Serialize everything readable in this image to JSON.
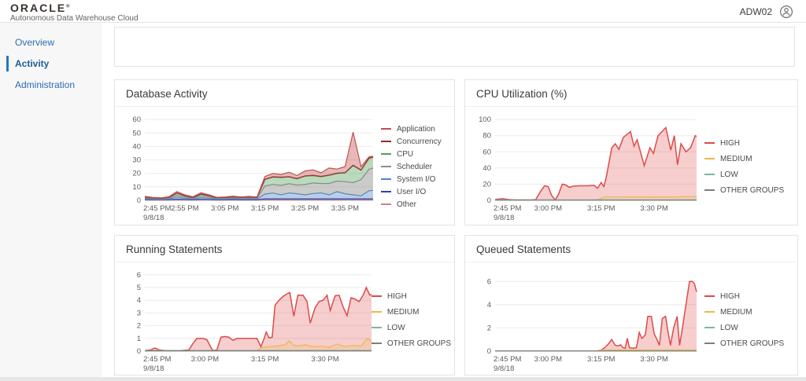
{
  "header": {
    "logo": "ORACLE",
    "logo_mark": "®",
    "subtitle": "Autonomous Data Warehouse Cloud",
    "user_label": "ADW02"
  },
  "sidebar": {
    "items": [
      {
        "label": "Overview"
      },
      {
        "label": "Activity"
      },
      {
        "label": "Administration"
      }
    ],
    "active": "Activity"
  },
  "chart_data": [
    {
      "id": "db-activity",
      "type": "area",
      "stacked": true,
      "title": "Database Activity",
      "date": "9/8/18",
      "xmin": 0,
      "xmax": 57,
      "ymax": 63,
      "yticks": [
        0,
        10,
        20,
        30,
        40,
        50,
        60
      ],
      "xticks": [
        {
          "t": 0,
          "label": "2:45 PM"
        },
        {
          "t": 10,
          "label": "2:55 PM"
        },
        {
          "t": 20,
          "label": "3:05 PM"
        },
        {
          "t": 30,
          "label": "3:15 PM"
        },
        {
          "t": 40,
          "label": "3:25 PM"
        },
        {
          "t": 50,
          "label": "3:35 PM"
        }
      ],
      "x": [
        0,
        2,
        4,
        6,
        8,
        10,
        12,
        14,
        16,
        18,
        20,
        22,
        24,
        26,
        28,
        30,
        32,
        34,
        36,
        38,
        40,
        42,
        44,
        46,
        48,
        50,
        52,
        54,
        56,
        57
      ],
      "series": [
        {
          "name": "Other",
          "color": "#cf8099",
          "fo": 0.45,
          "y": [
            0.4,
            0.3,
            0.3,
            0.3,
            0.5,
            0.4,
            0.3,
            0.5,
            0.4,
            0.3,
            0.3,
            0.4,
            0.3,
            0.3,
            0.3,
            0.5,
            0.5,
            0.5,
            0.5,
            0.5,
            0.5,
            0.5,
            0.5,
            0.5,
            0.5,
            0.5,
            0.5,
            0.5,
            0.5,
            0.5
          ]
        },
        {
          "name": "User I/O",
          "color": "#33429e",
          "fo": 0.45,
          "y": [
            0.3,
            0.2,
            0.2,
            0.2,
            0.4,
            0.3,
            0.2,
            0.4,
            0.3,
            0.2,
            0.2,
            0.3,
            0.2,
            0.2,
            0.2,
            0.6,
            0.6,
            0.6,
            0.6,
            0.6,
            0.6,
            0.6,
            0.6,
            0.6,
            0.6,
            0.6,
            0.6,
            0.6,
            0.6,
            0.6
          ]
        },
        {
          "name": "System I/O",
          "color": "#4f86c6",
          "fo": 0.4,
          "y": [
            0.6,
            0.4,
            0.3,
            0.5,
            1.5,
            0.8,
            0.5,
            1.2,
            0.9,
            0.4,
            0.5,
            0.6,
            0.5,
            0.6,
            0.5,
            3.5,
            4.3,
            3.0,
            4.4,
            3.8,
            3.0,
            4.0,
            4.4,
            3.0,
            5.4,
            3.8,
            3.0,
            2.2,
            6.0,
            6.3
          ]
        },
        {
          "name": "Scheduler",
          "color": "#8c8c8c",
          "fo": 0.45,
          "y": [
            0.6,
            0.4,
            0.4,
            0.6,
            1.5,
            1.0,
            0.6,
            1.3,
            1.0,
            0.5,
            0.6,
            0.7,
            0.6,
            0.7,
            0.6,
            6.0,
            6.4,
            7.0,
            6.8,
            6.4,
            7.6,
            7.8,
            7.0,
            8.4,
            7.8,
            9.0,
            9.0,
            12.0,
            16.0,
            16.5
          ]
        },
        {
          "name": "CPU",
          "color": "#55a05a",
          "fo": 0.4,
          "y": [
            0.5,
            0.4,
            0.3,
            0.5,
            1.4,
            0.8,
            0.5,
            1.1,
            0.8,
            0.4,
            0.5,
            0.6,
            0.5,
            0.6,
            0.5,
            4.8,
            5.4,
            5.8,
            5.0,
            4.6,
            6.2,
            5.4,
            5.0,
            6.0,
            5.6,
            6.4,
            12.6,
            7.0,
            8.0,
            8.0
          ]
        },
        {
          "name": "Concurrency",
          "color": "#96282f",
          "fo": 0.5,
          "y": [
            0.1,
            0.1,
            0.1,
            0.1,
            0.2,
            0.1,
            0.1,
            0.2,
            0.1,
            0.1,
            0.1,
            0.1,
            0.1,
            0.1,
            0.1,
            0.3,
            0.3,
            0.3,
            0.3,
            0.3,
            0.3,
            0.3,
            0.3,
            0.3,
            0.3,
            0.3,
            0.4,
            0.3,
            0.3,
            0.3
          ]
        },
        {
          "name": "Application",
          "color": "#c0504d",
          "fo": 0.4,
          "y": [
            0.4,
            0.3,
            0.2,
            0.4,
            1.0,
            0.6,
            0.4,
            0.9,
            0.6,
            0.3,
            0.3,
            0.4,
            0.3,
            0.4,
            0.3,
            2.0,
            2.4,
            2.0,
            3.3,
            2.2,
            3.6,
            4.0,
            2.6,
            5.2,
            3.0,
            4.4,
            24.5,
            2.5,
            0.9,
            0.5
          ]
        }
      ],
      "legend": [
        {
          "label": "Application",
          "color": "#c0504d"
        },
        {
          "label": "Concurrency",
          "color": "#96282f"
        },
        {
          "label": "CPU",
          "color": "#55a05a"
        },
        {
          "label": "Scheduler",
          "color": "#8c8c8c"
        },
        {
          "label": "System I/O",
          "color": "#4f86c6"
        },
        {
          "label": "User I/O",
          "color": "#33429e"
        },
        {
          "label": "Other",
          "color": "#cf8099"
        }
      ]
    },
    {
      "id": "cpu-utilization",
      "type": "area",
      "stacked": false,
      "title": "CPU Utilization (%)",
      "date": "9/8/18",
      "xmin": 0,
      "xmax": 57,
      "ymax": 105,
      "yticks": [
        0,
        20,
        40,
        60,
        80,
        100
      ],
      "xticks": [
        {
          "t": 0,
          "label": "2:45 PM"
        },
        {
          "t": 15,
          "label": "3:00 PM"
        },
        {
          "t": 30,
          "label": "3:15 PM"
        },
        {
          "t": 45,
          "label": "3:30 PM"
        }
      ],
      "series": [
        {
          "name": "HIGH",
          "color": "#dd4b4b",
          "fill": true,
          "fo": 0.27,
          "x": [
            0,
            2,
            4,
            6,
            8,
            10,
            11.5,
            13,
            14,
            15,
            16,
            17,
            18,
            19,
            20,
            21,
            22,
            24,
            26,
            28,
            29,
            30,
            30.8,
            31.5,
            33,
            34,
            35,
            36.3,
            38.3,
            39.3,
            40.2,
            42.2,
            43.8,
            44.8,
            46.1,
            48.3,
            49.7,
            50.7,
            51.6,
            52.6,
            54,
            55.3,
            56.6,
            57
          ],
          "y": [
            1,
            2,
            1,
            0.5,
            0.5,
            0.5,
            1,
            12,
            18,
            17,
            6,
            0.5,
            8,
            20,
            19,
            16,
            17.5,
            18,
            18,
            18.5,
            15,
            22,
            17,
            30,
            65,
            70,
            63,
            78,
            85,
            67,
            75,
            43,
            65,
            58,
            80,
            90,
            62,
            80,
            44,
            70,
            60,
            65,
            80,
            79
          ]
        },
        {
          "name": "MEDIUM",
          "color": "#edb74d",
          "fill": true,
          "fo": 0.15,
          "x": [
            0,
            28,
            29.5,
            31,
            35,
            40,
            45,
            50,
            54,
            57
          ],
          "y": [
            0.3,
            0.3,
            1.5,
            4,
            4.2,
            4,
            4.3,
            4,
            4.5,
            4.5
          ]
        },
        {
          "name": "LOW",
          "color": "#7bb89a",
          "fill": false,
          "x": [
            0,
            57
          ],
          "y": [
            0.6,
            0.6
          ]
        },
        {
          "name": "OTHER GROUPS",
          "color": "#7d7d7d",
          "fill": false,
          "x": [
            0,
            57
          ],
          "y": [
            0.2,
            0.2
          ]
        }
      ],
      "legend": [
        {
          "label": "HIGH",
          "color": "#dd4b4b"
        },
        {
          "label": "MEDIUM",
          "color": "#edb74d"
        },
        {
          "label": "LOW",
          "color": "#7bb89a"
        },
        {
          "label": "OTHER GROUPS",
          "color": "#7d7d7d"
        }
      ]
    },
    {
      "id": "running-statements",
      "type": "area",
      "stacked": false,
      "title": "Running Statements",
      "date": "9/8/18",
      "xmin": 0,
      "xmax": 57,
      "ymax": 6.3,
      "yticks": [
        0,
        1,
        2,
        3,
        4,
        5,
        6
      ],
      "xticks": [
        {
          "t": 0,
          "label": "2:45 PM"
        },
        {
          "t": 15,
          "label": "3:00 PM"
        },
        {
          "t": 30,
          "label": "3:15 PM"
        },
        {
          "t": 45,
          "label": "3:30 PM"
        }
      ],
      "series": [
        {
          "name": "HIGH",
          "color": "#dd4b4b",
          "fill": true,
          "fo": 0.27,
          "x": [
            0,
            1.5,
            2.5,
            3.5,
            5,
            7,
            9,
            11,
            12,
            13,
            14.5,
            15.5,
            16.5,
            17,
            18,
            19,
            20,
            21,
            22,
            23,
            24,
            26,
            28,
            29,
            29.8,
            30.3,
            31,
            31.8,
            32.5,
            33.5,
            34.5,
            35.5,
            36.2,
            37.2,
            38.2,
            39.5,
            40.5,
            41.3,
            42.5,
            43.5,
            44.5,
            45.5,
            46.3,
            47.5,
            48.5,
            49.5,
            50.5,
            51.5,
            52.5,
            53.5,
            54.5,
            55.3,
            56.2,
            57
          ],
          "y": [
            0.05,
            0.1,
            0.25,
            0.1,
            0.05,
            0.05,
            0.05,
            0.1,
            0.6,
            1.0,
            1.0,
            0.9,
            0.3,
            0.05,
            0.1,
            1.1,
            1.15,
            1.1,
            0.85,
            1.0,
            1.0,
            1.0,
            1.0,
            0.35,
            1.0,
            1.5,
            1.05,
            1.1,
            3.6,
            4.0,
            4.3,
            4.5,
            4.6,
            2.75,
            4.4,
            4.4,
            3.9,
            2.2,
            3.4,
            3.9,
            4.0,
            4.4,
            3.2,
            4.35,
            4.4,
            3.5,
            2.8,
            4.2,
            4.1,
            3.9,
            4.4,
            5.0,
            4.4,
            4.5
          ]
        },
        {
          "name": "MEDIUM",
          "color": "#edb74d",
          "fill": true,
          "fo": 0.2,
          "x": [
            0,
            28,
            29.5,
            31,
            33,
            35,
            36,
            37,
            38,
            40,
            42,
            44,
            46,
            48,
            50,
            52,
            54,
            55.5,
            56.5,
            57
          ],
          "y": [
            0.05,
            0.05,
            0.3,
            0.35,
            0.4,
            0.5,
            0.8,
            0.5,
            0.4,
            0.5,
            0.35,
            0.4,
            0.3,
            0.55,
            0.35,
            0.45,
            0.4,
            1.0,
            0.8,
            0.65
          ]
        },
        {
          "name": "LOW",
          "color": "#7bb89a",
          "fill": false,
          "x": [
            0,
            57
          ],
          "y": [
            0.05,
            0.05
          ]
        },
        {
          "name": "OTHER GROUPS",
          "color": "#7d7d7d",
          "fill": false,
          "x": [
            0,
            57
          ],
          "y": [
            0.03,
            0.03
          ]
        }
      ],
      "legend": [
        {
          "label": "HIGH",
          "color": "#dd4b4b"
        },
        {
          "label": "MEDIUM",
          "color": "#edb74d"
        },
        {
          "label": "LOW",
          "color": "#7bb89a"
        },
        {
          "label": "OTHER GROUPS",
          "color": "#7d7d7d"
        }
      ]
    },
    {
      "id": "queued-statements",
      "type": "area",
      "stacked": false,
      "title": "Queued Statements",
      "date": "9/8/18",
      "xmin": 0,
      "xmax": 57,
      "ymax": 6.9,
      "yticks": [
        0,
        2,
        4,
        6
      ],
      "xticks": [
        {
          "t": 0,
          "label": "2:45 PM"
        },
        {
          "t": 15,
          "label": "3:00 PM"
        },
        {
          "t": 30,
          "label": "3:15 PM"
        },
        {
          "t": 45,
          "label": "3:30 PM"
        }
      ],
      "series": [
        {
          "name": "HIGH",
          "color": "#dd4b4b",
          "fill": true,
          "fo": 0.27,
          "x": [
            0,
            10,
            20,
            29,
            30,
            31,
            32,
            33,
            34,
            34.8,
            35.5,
            36.2,
            36.8,
            37.4,
            38,
            39,
            40,
            40.8,
            41.5,
            42.5,
            43.2,
            44.2,
            45,
            45.8,
            46.5,
            47.3,
            48.2,
            49,
            49.6,
            50.5,
            51.5,
            52.2,
            53,
            54,
            55,
            55.8,
            56.4,
            57
          ],
          "y": [
            0.02,
            0.02,
            0.02,
            0.02,
            0.1,
            0.3,
            0.6,
            1.0,
            0.5,
            0.45,
            0.55,
            0.3,
            0.25,
            1.1,
            0.3,
            0.25,
            0.3,
            1.6,
            1.1,
            1.4,
            3.0,
            3.0,
            1.5,
            1.0,
            0.5,
            2.8,
            3.0,
            1.5,
            0.5,
            2.0,
            3.0,
            0.5,
            2.0,
            4.0,
            6.0,
            6.0,
            5.8,
            5.1
          ]
        },
        {
          "name": "MEDIUM",
          "color": "#edb74d",
          "fill": false,
          "x": [
            0,
            29,
            30,
            57
          ],
          "y": [
            0.02,
            0.02,
            0.1,
            0.12
          ]
        },
        {
          "name": "LOW",
          "color": "#7bb89a",
          "fill": false,
          "x": [
            0,
            57
          ],
          "y": [
            0.02,
            0.02
          ]
        },
        {
          "name": "OTHER GROUPS",
          "color": "#7d7d7d",
          "fill": false,
          "x": [
            0,
            57
          ],
          "y": [
            0.02,
            0.02
          ]
        }
      ],
      "legend": [
        {
          "label": "HIGH",
          "color": "#dd4b4b"
        },
        {
          "label": "MEDIUM",
          "color": "#edb74d"
        },
        {
          "label": "LOW",
          "color": "#7bb89a"
        },
        {
          "label": "OTHER GROUPS",
          "color": "#7d7d7d"
        }
      ]
    }
  ]
}
